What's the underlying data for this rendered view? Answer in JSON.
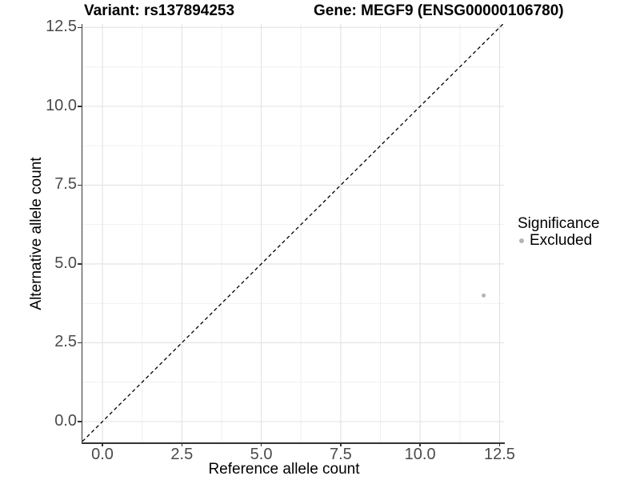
{
  "titles": {
    "left": "Variant: rs137894253",
    "right": "Gene: MEGF9 (ENSG00000106780)"
  },
  "chart_data": {
    "type": "scatter",
    "title_left": "Variant: rs137894253",
    "title_right": "Gene: MEGF9 (ENSG00000106780)",
    "xlabel": "Reference allele count",
    "ylabel": "Alternative allele count",
    "x_ticks": [
      0.0,
      2.5,
      5.0,
      7.5,
      10.0,
      12.5
    ],
    "y_ticks": [
      0.0,
      2.5,
      5.0,
      7.5,
      10.0,
      12.5
    ],
    "x_tick_labels": [
      "0.0",
      "2.5",
      "5.0",
      "7.5",
      "10.0",
      "12.5"
    ],
    "y_tick_labels": [
      "0.0",
      "2.5",
      "5.0",
      "7.5",
      "10.0",
      "12.5"
    ],
    "xlim": [
      -0.63,
      12.64
    ],
    "ylim": [
      -0.66,
      12.61
    ],
    "grid": true,
    "minor_grid": true,
    "points": [
      {
        "x": 12,
        "y": 4,
        "series": "Excluded"
      }
    ],
    "identity_line": {
      "slope": 1,
      "intercept": 0,
      "style": "dashed",
      "color": "#000000"
    },
    "legend": {
      "title": "Significance",
      "position": "right",
      "items": [
        {
          "label": "Excluded",
          "color": "#b4b4b4"
        }
      ]
    },
    "colors": {
      "point": "#b4b4b4",
      "grid_major": "#e2e2e2",
      "grid_minor": "#f0f0f0",
      "axis_line": "#333333",
      "tick_label": "#4a4a4a"
    }
  }
}
